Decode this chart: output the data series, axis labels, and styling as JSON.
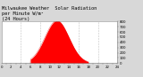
{
  "title": "Milwaukee Weather  Solar Radiation\nper Minute W/m²\n(24 Hours)",
  "bg_color": "#d8d8d8",
  "plot_bg_color": "#ffffff",
  "fill_color": "#ff0000",
  "line_color": "#dd0000",
  "peak_hour": 11.5,
  "peak_value": 820,
  "sigma": 2.5,
  "day_start": 6.0,
  "day_end": 18.0,
  "x_min": 0,
  "x_max": 24,
  "y_min": 0,
  "y_max": 800,
  "title_fontsize": 3.8,
  "grid_color": "#bbbbbb",
  "tick_fontsize": 2.8,
  "y_tick_step": 100,
  "x_grid_positions": [
    4,
    8,
    12,
    16,
    20
  ]
}
